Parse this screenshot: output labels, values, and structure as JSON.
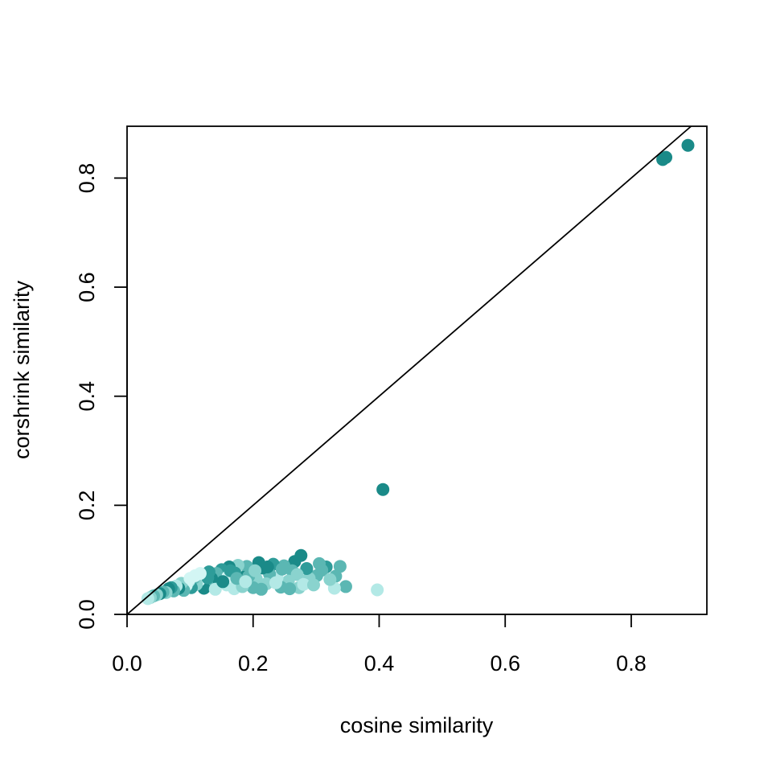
{
  "chart_data": {
    "type": "scatter",
    "title": "",
    "xlabel": "cosine similarity",
    "ylabel": "corshrink similarity",
    "xlim": [
      0.0,
      0.92
    ],
    "ylim": [
      0.0,
      0.895
    ],
    "x_ticks": [
      0.0,
      0.2,
      0.4,
      0.6,
      0.8
    ],
    "y_ticks": [
      0.0,
      0.2,
      0.4,
      0.6,
      0.8
    ],
    "x_tick_labels": [
      "0.0",
      "0.2",
      "0.4",
      "0.6",
      "0.8"
    ],
    "y_tick_labels": [
      "0.0",
      "0.2",
      "0.4",
      "0.6",
      "0.8"
    ],
    "reference_line": {
      "slope": 1,
      "intercept": 0
    },
    "grid": false,
    "colors": [
      "#1a8a88",
      "#2e9c99",
      "#5bb7b3",
      "#8ad3ce",
      "#b3e9e6",
      "#d3f6f4"
    ],
    "points": [
      {
        "x": 0.89,
        "y": 0.86,
        "c": 0
      },
      {
        "x": 0.855,
        "y": 0.838,
        "c": 0
      },
      {
        "x": 0.85,
        "y": 0.834,
        "c": 0
      },
      {
        "x": 0.406,
        "y": 0.229,
        "c": 0
      },
      {
        "x": 0.397,
        "y": 0.045,
        "c": 4
      },
      {
        "x": 0.347,
        "y": 0.051,
        "c": 2
      },
      {
        "x": 0.338,
        "y": 0.088,
        "c": 2
      },
      {
        "x": 0.331,
        "y": 0.07,
        "c": 2
      },
      {
        "x": 0.329,
        "y": 0.048,
        "c": 4
      },
      {
        "x": 0.316,
        "y": 0.087,
        "c": 1
      },
      {
        "x": 0.305,
        "y": 0.093,
        "c": 2
      },
      {
        "x": 0.301,
        "y": 0.071,
        "c": 2
      },
      {
        "x": 0.289,
        "y": 0.066,
        "c": 3
      },
      {
        "x": 0.285,
        "y": 0.084,
        "c": 1
      },
      {
        "x": 0.276,
        "y": 0.108,
        "c": 0
      },
      {
        "x": 0.273,
        "y": 0.049,
        "c": 3
      },
      {
        "x": 0.266,
        "y": 0.097,
        "c": 0
      },
      {
        "x": 0.262,
        "y": 0.08,
        "c": 2
      },
      {
        "x": 0.256,
        "y": 0.061,
        "c": 3
      },
      {
        "x": 0.249,
        "y": 0.089,
        "c": 2
      },
      {
        "x": 0.244,
        "y": 0.05,
        "c": 2
      },
      {
        "x": 0.238,
        "y": 0.067,
        "c": 4
      },
      {
        "x": 0.232,
        "y": 0.092,
        "c": 1
      },
      {
        "x": 0.226,
        "y": 0.074,
        "c": 2
      },
      {
        "x": 0.221,
        "y": 0.056,
        "c": 3
      },
      {
        "x": 0.215,
        "y": 0.085,
        "c": 0
      },
      {
        "x": 0.209,
        "y": 0.095,
        "c": 0
      },
      {
        "x": 0.205,
        "y": 0.065,
        "c": 3
      },
      {
        "x": 0.2,
        "y": 0.049,
        "c": 2
      },
      {
        "x": 0.196,
        "y": 0.079,
        "c": 1
      },
      {
        "x": 0.19,
        "y": 0.088,
        "c": 2
      },
      {
        "x": 0.185,
        "y": 0.068,
        "c": 0
      },
      {
        "x": 0.18,
        "y": 0.057,
        "c": 3
      },
      {
        "x": 0.176,
        "y": 0.09,
        "c": 3
      },
      {
        "x": 0.171,
        "y": 0.076,
        "c": 1
      },
      {
        "x": 0.166,
        "y": 0.062,
        "c": 2
      },
      {
        "x": 0.162,
        "y": 0.087,
        "c": 0
      },
      {
        "x": 0.158,
        "y": 0.054,
        "c": 4
      },
      {
        "x": 0.154,
        "y": 0.071,
        "c": 2
      },
      {
        "x": 0.15,
        "y": 0.082,
        "c": 1
      },
      {
        "x": 0.146,
        "y": 0.06,
        "c": 0
      },
      {
        "x": 0.142,
        "y": 0.075,
        "c": 2
      },
      {
        "x": 0.138,
        "y": 0.052,
        "c": 3
      },
      {
        "x": 0.134,
        "y": 0.066,
        "c": 0
      },
      {
        "x": 0.13,
        "y": 0.078,
        "c": 1
      },
      {
        "x": 0.126,
        "y": 0.058,
        "c": 2
      },
      {
        "x": 0.122,
        "y": 0.048,
        "c": 0
      },
      {
        "x": 0.118,
        "y": 0.07,
        "c": 4
      },
      {
        "x": 0.114,
        "y": 0.062,
        "c": 5
      },
      {
        "x": 0.11,
        "y": 0.055,
        "c": 3
      },
      {
        "x": 0.106,
        "y": 0.067,
        "c": 2
      },
      {
        "x": 0.102,
        "y": 0.049,
        "c": 1
      },
      {
        "x": 0.098,
        "y": 0.061,
        "c": 4
      },
      {
        "x": 0.094,
        "y": 0.053,
        "c": 5
      },
      {
        "x": 0.09,
        "y": 0.044,
        "c": 2
      },
      {
        "x": 0.086,
        "y": 0.057,
        "c": 3
      },
      {
        "x": 0.082,
        "y": 0.048,
        "c": 0
      },
      {
        "x": 0.078,
        "y": 0.052,
        "c": 4
      },
      {
        "x": 0.074,
        "y": 0.043,
        "c": 2
      },
      {
        "x": 0.07,
        "y": 0.049,
        "c": 1
      },
      {
        "x": 0.066,
        "y": 0.047,
        "c": 0
      },
      {
        "x": 0.062,
        "y": 0.04,
        "c": 3
      },
      {
        "x": 0.057,
        "y": 0.041,
        "c": 2
      },
      {
        "x": 0.052,
        "y": 0.038,
        "c": 0
      },
      {
        "x": 0.047,
        "y": 0.036,
        "c": 3
      },
      {
        "x": 0.042,
        "y": 0.034,
        "c": 2
      },
      {
        "x": 0.037,
        "y": 0.031,
        "c": 3
      },
      {
        "x": 0.033,
        "y": 0.029,
        "c": 4
      },
      {
        "x": 0.16,
        "y": 0.069,
        "c": 5
      },
      {
        "x": 0.17,
        "y": 0.047,
        "c": 4
      },
      {
        "x": 0.183,
        "y": 0.051,
        "c": 3
      },
      {
        "x": 0.193,
        "y": 0.07,
        "c": 2
      },
      {
        "x": 0.203,
        "y": 0.08,
        "c": 3
      },
      {
        "x": 0.213,
        "y": 0.046,
        "c": 2
      },
      {
        "x": 0.223,
        "y": 0.087,
        "c": 0
      },
      {
        "x": 0.236,
        "y": 0.058,
        "c": 4
      },
      {
        "x": 0.246,
        "y": 0.083,
        "c": 2
      },
      {
        "x": 0.258,
        "y": 0.047,
        "c": 2
      },
      {
        "x": 0.27,
        "y": 0.073,
        "c": 3
      },
      {
        "x": 0.28,
        "y": 0.055,
        "c": 4
      },
      {
        "x": 0.296,
        "y": 0.054,
        "c": 3
      },
      {
        "x": 0.309,
        "y": 0.081,
        "c": 2
      },
      {
        "x": 0.322,
        "y": 0.064,
        "c": 3
      },
      {
        "x": 0.14,
        "y": 0.046,
        "c": 4
      },
      {
        "x": 0.128,
        "y": 0.067,
        "c": 1
      },
      {
        "x": 0.116,
        "y": 0.075,
        "c": 5
      },
      {
        "x": 0.108,
        "y": 0.071,
        "c": 5
      },
      {
        "x": 0.1,
        "y": 0.066,
        "c": 5
      },
      {
        "x": 0.152,
        "y": 0.06,
        "c": 0
      },
      {
        "x": 0.164,
        "y": 0.08,
        "c": 1
      },
      {
        "x": 0.174,
        "y": 0.066,
        "c": 2
      },
      {
        "x": 0.188,
        "y": 0.06,
        "c": 4
      }
    ]
  }
}
